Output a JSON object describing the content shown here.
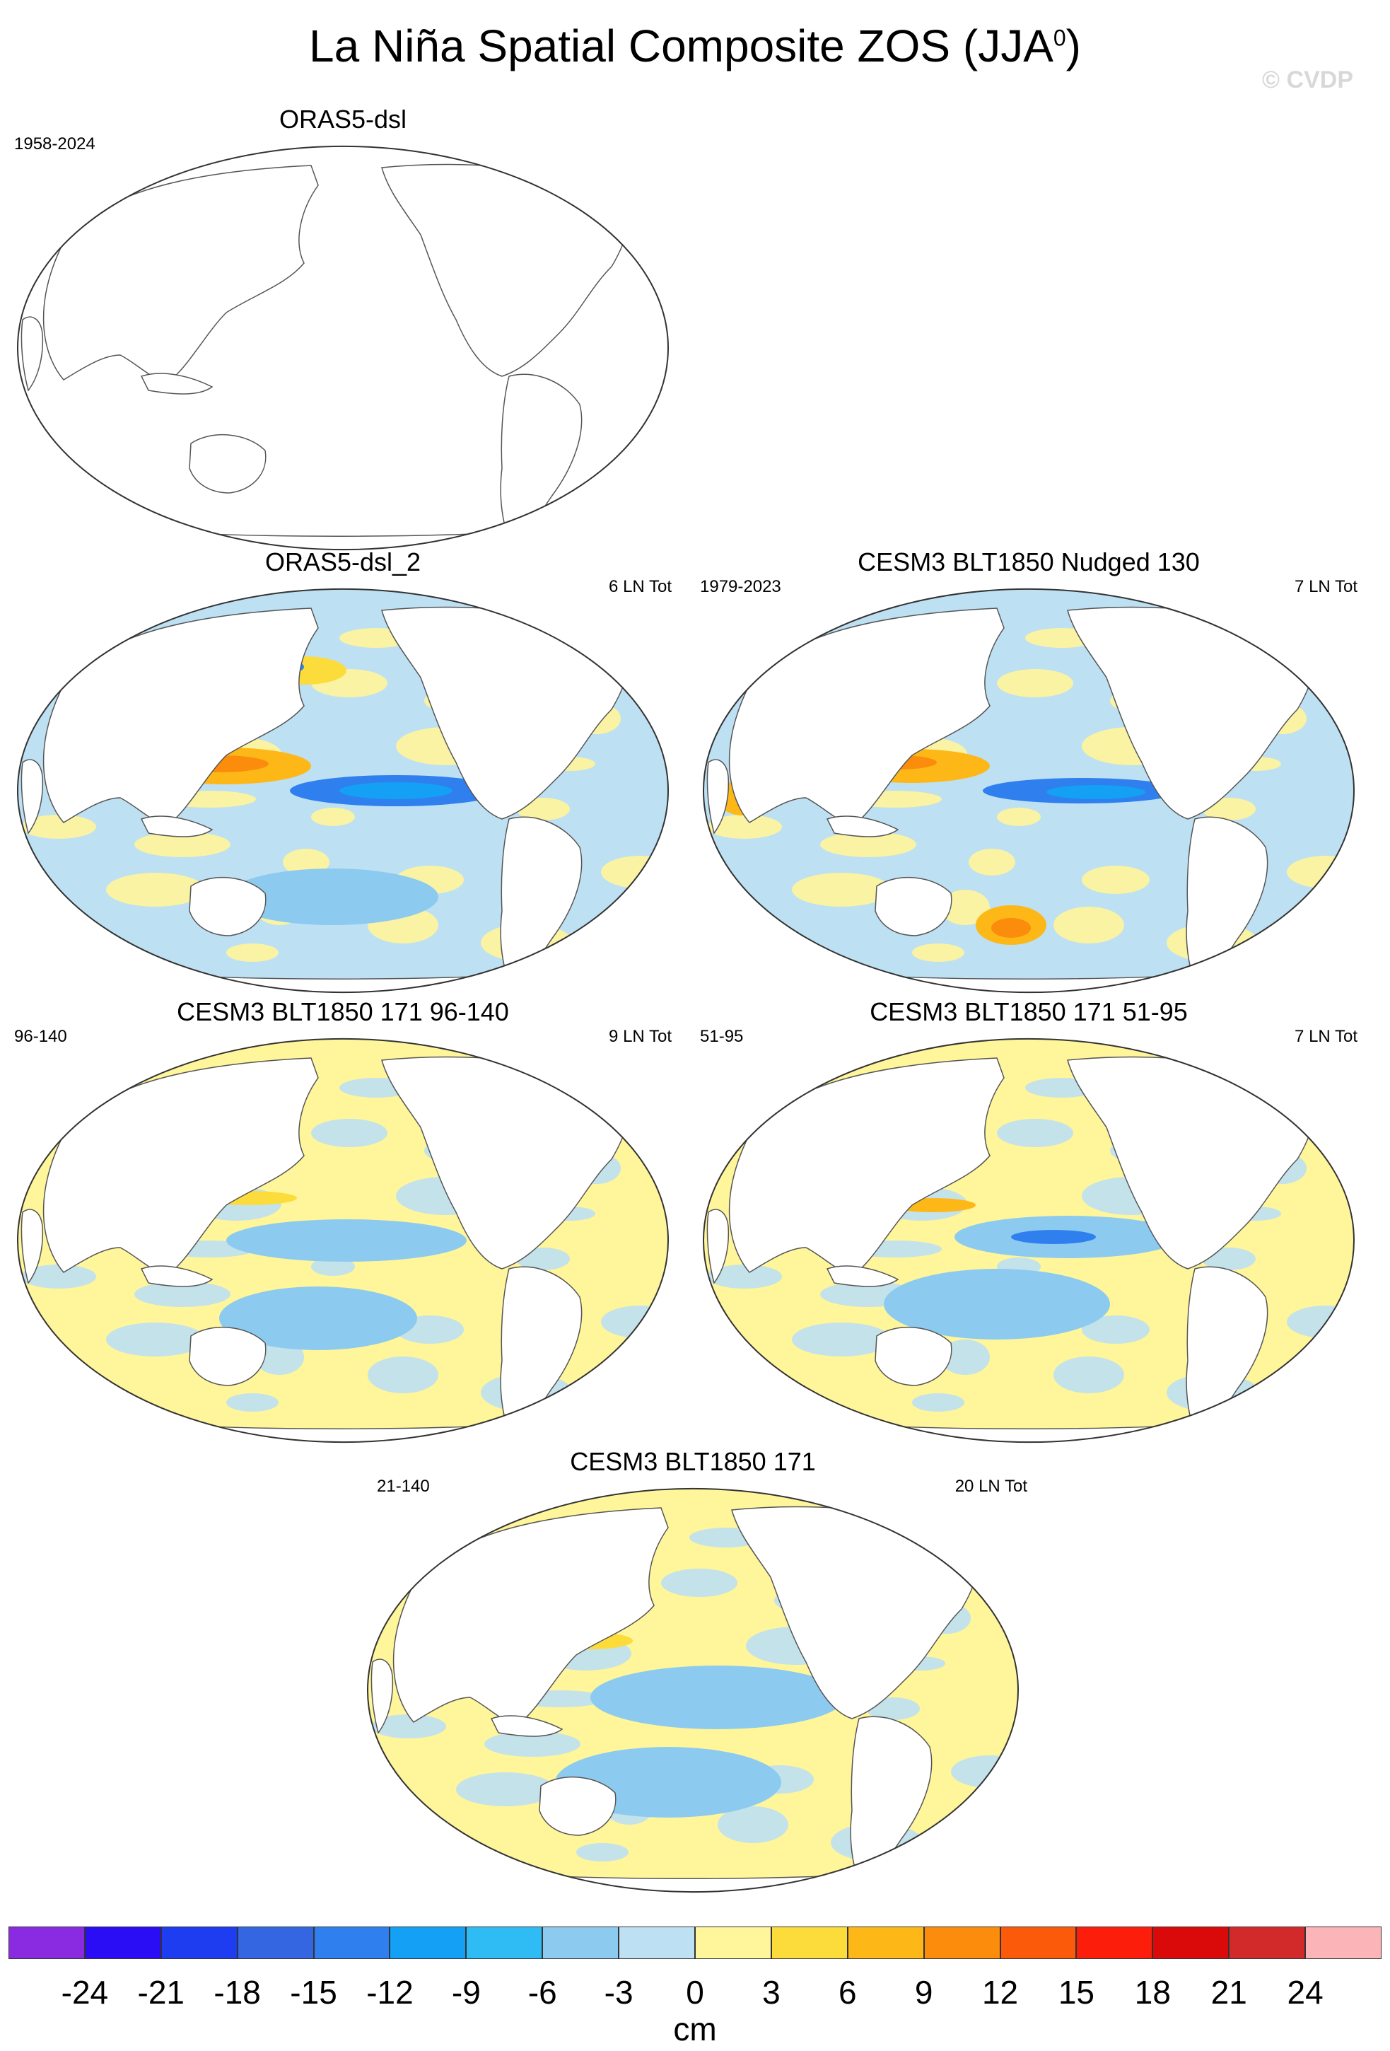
{
  "figure": {
    "title": "La Niña Spatial Composite ZOS (JJA",
    "title_sup": "0",
    "title_close": ")",
    "copyright": "© CVDP"
  },
  "panels": [
    {
      "title": "ORAS5-dsl",
      "left_text": "1958-2024",
      "right_text": "",
      "fill": "none"
    },
    {
      "title": "ORAS5-dsl_2",
      "left_text": "",
      "right_text": "6 LN Tot",
      "fill": "obs"
    },
    {
      "title": "CESM3 BLT1850 Nudged 130",
      "left_text": "1979-2023",
      "right_text": "7 LN Tot",
      "fill": "nudged"
    },
    {
      "title": "CESM3 BLT1850 171 96-140",
      "left_text": "96-140",
      "right_text": "9 LN Tot",
      "fill": "model_a"
    },
    {
      "title": "CESM3 BLT1850 171 51-95",
      "left_text": "51-95",
      "right_text": "7 LN Tot",
      "fill": "model_b"
    },
    {
      "title": "CESM3 BLT1850 171",
      "left_text": "21-140",
      "right_text": "20 LN Tot",
      "fill": "model_c"
    }
  ],
  "colorbar": {
    "units": "cm",
    "labels": [
      "-24",
      "-21",
      "-18",
      "-15",
      "-12",
      "-9",
      "-6",
      "-3",
      "0",
      "3",
      "6",
      "9",
      "12",
      "15",
      "18",
      "21",
      "24"
    ],
    "colors": [
      "#8a2be2",
      "#2a0cf5",
      "#1e3cf0",
      "#3366e0",
      "#2f7fef",
      "#13a0f5",
      "#2fbcf5",
      "#8ccbef",
      "#bde0f3",
      "#fff59a",
      "#fcdc3a",
      "#fdb818",
      "#fb8c0c",
      "#fb5a0a",
      "#fc1e0a",
      "#da0a0a",
      "#d22a2a",
      "#fbb4b8"
    ]
  }
}
